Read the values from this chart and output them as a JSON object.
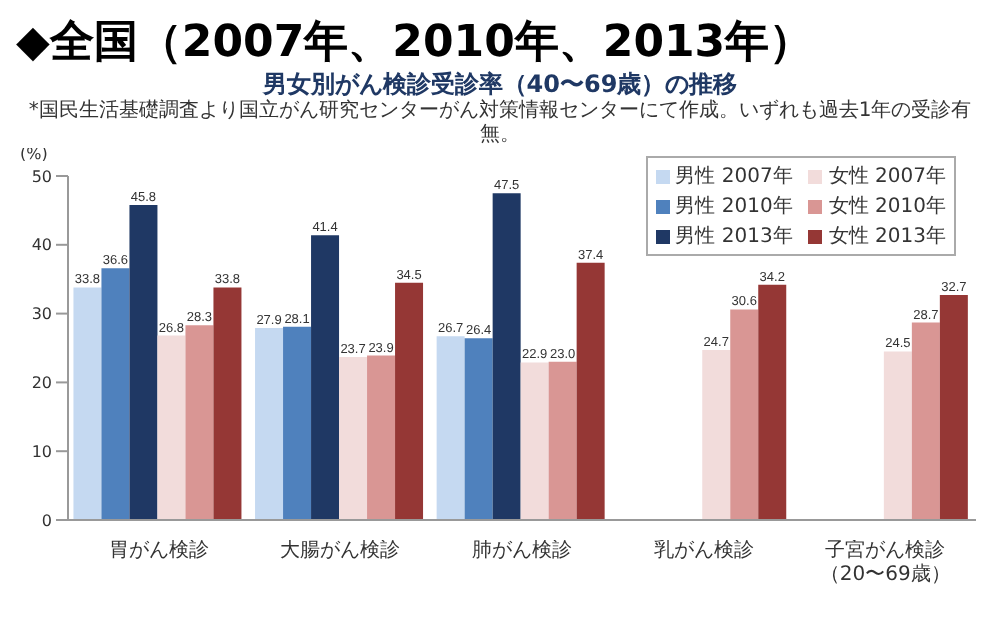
{
  "chart_data": {
    "type": "bar",
    "title": "◆全国（2007年、2010年、2013年）",
    "subtitle": "男女別がん検診受診率（40〜69歳）の推移",
    "annotations": [
      "*国民生活基礎調査より国立がん研究センターがん対策情報センターにて作成。いずれも過去1年の受診有無。"
    ],
    "ylabel": "(%)",
    "categories": [
      "胃がん検診",
      "大腸がん検診",
      "肺がん検診",
      "乳がん検診",
      "子宮がん検診（20〜69歳）"
    ],
    "series": [
      {
        "name": "男性 2007年",
        "color": "#c5d9f1",
        "values": [
          33.8,
          27.9,
          26.7,
          null,
          null
        ],
        "value_labels": [
          "33.8",
          "27.9",
          "26.7",
          null,
          null
        ]
      },
      {
        "name": "男性 2010年",
        "color": "#4f81bd",
        "values": [
          36.6,
          28.1,
          26.4,
          null,
          null
        ],
        "value_labels": [
          "36.6",
          "28.1",
          "26.4",
          null,
          null
        ]
      },
      {
        "name": "男性 2013年",
        "color": "#1f3864",
        "values": [
          45.8,
          41.4,
          47.5,
          null,
          null
        ],
        "value_labels": [
          "45.8",
          "41.4",
          "47.5",
          null,
          null
        ]
      },
      {
        "name": "女性 2007年",
        "color": "#f2dcdb",
        "values": [
          26.8,
          23.7,
          22.9,
          24.7,
          24.5
        ],
        "value_labels": [
          "26.8",
          "23.7",
          "22.9",
          "24.7",
          "24.5"
        ]
      },
      {
        "name": "女性 2010年",
        "color": "#d99694",
        "values": [
          28.3,
          23.9,
          23.0,
          30.6,
          28.7
        ],
        "value_labels": [
          "28.3",
          "23.9",
          "23.0",
          "30.6",
          "28.7"
        ]
      },
      {
        "name": "女性 2013年",
        "color": "#953735",
        "values": [
          33.8,
          34.5,
          37.4,
          34.2,
          32.7
        ],
        "value_labels": [
          "33.8",
          "34.5",
          "37.4",
          "34.2",
          "32.7"
        ]
      }
    ],
    "ylim": [
      0,
      50
    ],
    "yticks": [
      0,
      10,
      20,
      30,
      40,
      50
    ],
    "legend": "top right"
  }
}
